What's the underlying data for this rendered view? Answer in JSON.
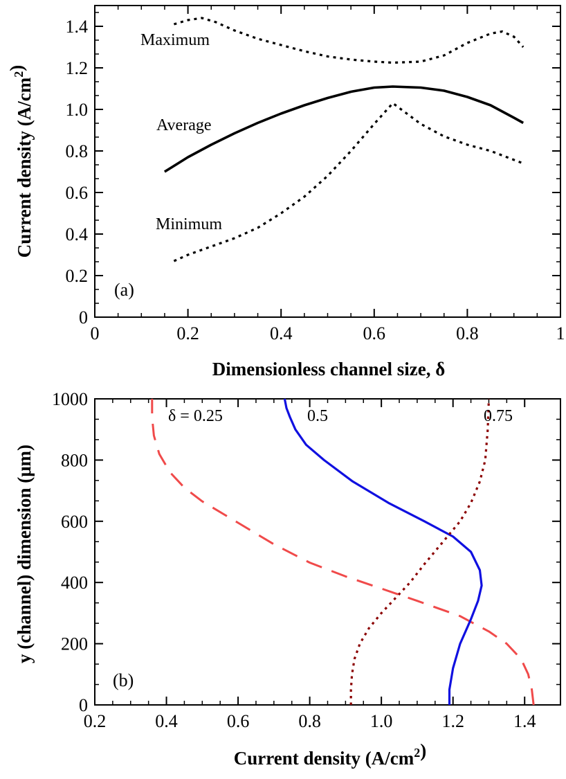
{
  "chart_data": [
    {
      "type": "line",
      "panel_label": "(a)",
      "xlabel": "Dimensionless channel size, δ",
      "ylabel": "Current density (A/cm²)",
      "xlim": [
        0,
        1
      ],
      "ylim": [
        0,
        1.5
      ],
      "x_ticks": [
        "0",
        "0.2",
        "0.4",
        "0.6",
        "0.8",
        "1"
      ],
      "y_ticks": [
        "0",
        "0.2",
        "0.4",
        "0.6",
        "0.8",
        "1.0",
        "1.2",
        "1.4"
      ],
      "grid": false,
      "series": [
        {
          "name": "Maximum",
          "style": "dotted",
          "color": "#000000",
          "x": [
            0.17,
            0.2,
            0.23,
            0.26,
            0.3,
            0.35,
            0.4,
            0.45,
            0.5,
            0.55,
            0.6,
            0.64,
            0.7,
            0.75,
            0.8,
            0.85,
            0.875,
            0.9,
            0.92
          ],
          "y": [
            1.41,
            1.43,
            1.44,
            1.42,
            1.38,
            1.34,
            1.31,
            1.28,
            1.255,
            1.24,
            1.23,
            1.225,
            1.23,
            1.26,
            1.32,
            1.365,
            1.375,
            1.35,
            1.3
          ]
        },
        {
          "name": "Average",
          "style": "solid",
          "color": "#000000",
          "x": [
            0.15,
            0.2,
            0.25,
            0.3,
            0.35,
            0.4,
            0.45,
            0.5,
            0.55,
            0.6,
            0.64,
            0.7,
            0.75,
            0.8,
            0.85,
            0.9,
            0.92
          ],
          "y": [
            0.7,
            0.77,
            0.83,
            0.885,
            0.935,
            0.98,
            1.02,
            1.055,
            1.085,
            1.105,
            1.11,
            1.105,
            1.09,
            1.06,
            1.02,
            0.96,
            0.935
          ]
        },
        {
          "name": "Minimum",
          "style": "dotted",
          "color": "#000000",
          "x": [
            0.17,
            0.2,
            0.25,
            0.3,
            0.35,
            0.4,
            0.45,
            0.5,
            0.55,
            0.6,
            0.64,
            0.7,
            0.75,
            0.8,
            0.85,
            0.92
          ],
          "y": [
            0.27,
            0.3,
            0.34,
            0.38,
            0.43,
            0.5,
            0.58,
            0.68,
            0.8,
            0.93,
            1.03,
            0.93,
            0.87,
            0.83,
            0.8,
            0.74
          ]
        }
      ]
    },
    {
      "type": "line",
      "panel_label": "(b)",
      "xlabel": "Current density (A/cm²)",
      "ylabel": "y (channel) dimension (μm)",
      "xlim": [
        0.2,
        1.5
      ],
      "ylim": [
        0,
        1000
      ],
      "x_ticks": [
        "0.2",
        "0.4",
        "0.6",
        "0.8",
        "1.0",
        "1.2",
        "1.4"
      ],
      "y_ticks": [
        "0",
        "200",
        "400",
        "600",
        "800",
        "1000"
      ],
      "grid": false,
      "series": [
        {
          "name": "δ = 0.25",
          "style": "dashed",
          "color": "#f04a4a",
          "x": [
            1.425,
            1.42,
            1.41,
            1.39,
            1.35,
            1.3,
            1.22,
            1.1,
            1.0,
            0.9,
            0.8,
            0.7,
            0.6,
            0.5,
            0.45,
            0.41,
            0.38,
            0.365,
            0.36,
            0.36
          ],
          "y": [
            0,
            50,
            100,
            150,
            200,
            240,
            290,
            340,
            380,
            420,
            465,
            525,
            595,
            665,
            710,
            760,
            820,
            880,
            940,
            1000
          ]
        },
        {
          "name": "0.5",
          "style": "solid",
          "color": "#1010e0",
          "x": [
            1.19,
            1.19,
            1.2,
            1.22,
            1.25,
            1.27,
            1.28,
            1.275,
            1.25,
            1.2,
            1.12,
            1.02,
            0.92,
            0.84,
            0.79,
            0.76,
            0.745,
            0.735,
            0.73
          ],
          "y": [
            0,
            50,
            120,
            200,
            280,
            340,
            390,
            440,
            500,
            550,
            600,
            660,
            730,
            800,
            850,
            900,
            940,
            970,
            1000
          ]
        },
        {
          "name": "0.75",
          "style": "dotted",
          "color": "#8b0000",
          "x": [
            0.915,
            0.915,
            0.918,
            0.925,
            0.94,
            0.965,
            1.0,
            1.04,
            1.08,
            1.12,
            1.17,
            1.22,
            1.25,
            1.275,
            1.29,
            1.297,
            1.3
          ],
          "y": [
            0,
            50,
            100,
            150,
            200,
            250,
            300,
            350,
            400,
            460,
            530,
            600,
            660,
            730,
            800,
            900,
            1000
          ]
        }
      ]
    }
  ]
}
